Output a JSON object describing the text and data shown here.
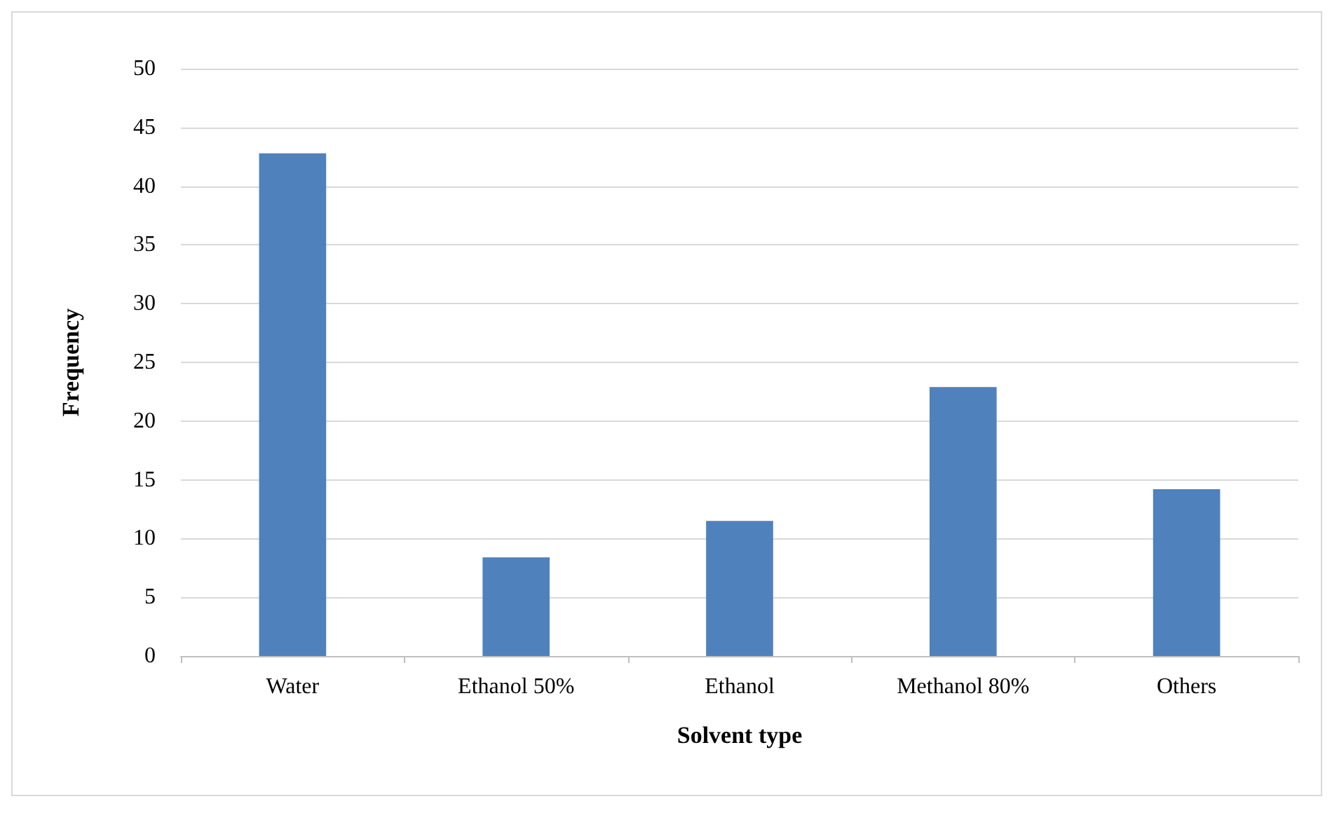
{
  "chart_data": {
    "type": "bar",
    "xlabel": "Solvent type",
    "ylabel": "Frequency",
    "categories": [
      "Water",
      "Ethanol 50%",
      "Ethanol",
      "Methanol 80%",
      "Others"
    ],
    "values": [
      42.8,
      8.4,
      11.5,
      22.9,
      14.2
    ],
    "color": "#4f81bd",
    "ylim": [
      0,
      50
    ],
    "yticks": [
      0,
      5,
      10,
      15,
      20,
      25,
      30,
      35,
      40,
      45,
      50
    ],
    "grid": "y"
  }
}
